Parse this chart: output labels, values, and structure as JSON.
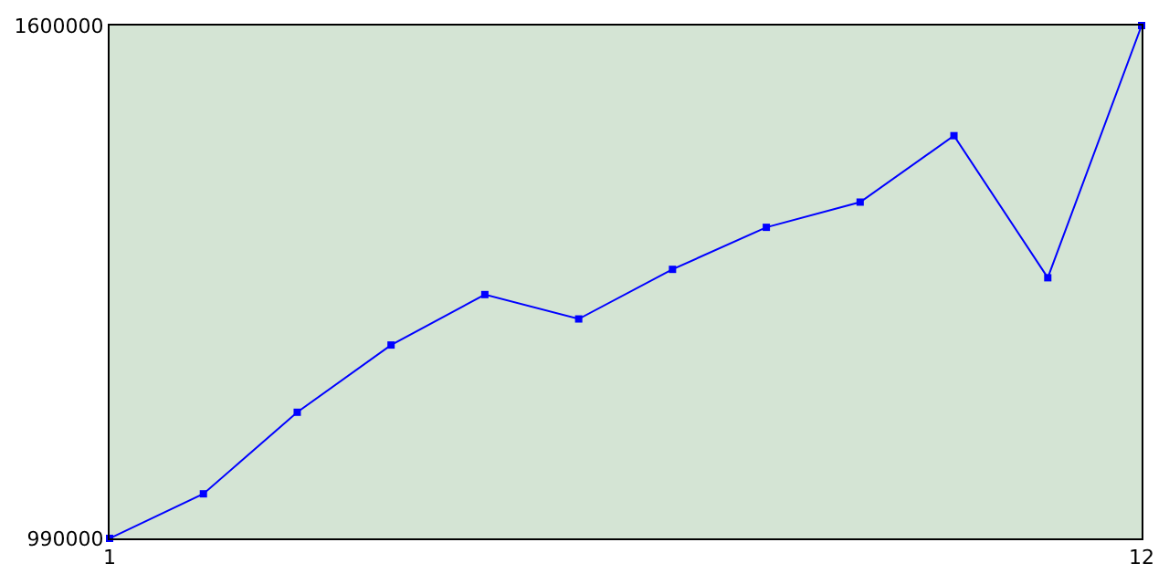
{
  "chart_data": {
    "type": "line",
    "x": [
      1,
      2,
      3,
      4,
      5,
      6,
      7,
      8,
      9,
      10,
      11,
      12
    ],
    "series": [
      {
        "color": "#0000ff",
        "values": [
          990000,
          1043000,
          1140000,
          1220000,
          1280000,
          1251000,
          1310000,
          1360000,
          1390000,
          1469000,
          1300000,
          1600000
        ]
      }
    ],
    "xlim": [
      1,
      12
    ],
    "xticks": [
      1,
      12
    ],
    "ylim": [
      990000,
      1600000
    ],
    "yticks": [
      990000,
      1600000
    ],
    "legend": false,
    "marker": "square",
    "line_style": "solid"
  }
}
